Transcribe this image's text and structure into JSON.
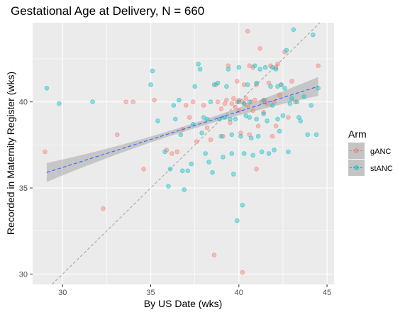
{
  "chart_data": {
    "type": "scatter",
    "title": "Gestational Age at Delivery, N = 660",
    "xlabel": "By US Date (wks)",
    "ylabel": "Recorded in Maternity Register (wks)",
    "xlim": [
      28.3,
      45.4
    ],
    "ylim": [
      29.4,
      44.6
    ],
    "xticks": [
      "30",
      "35",
      "40",
      "45"
    ],
    "yticks": [
      "30",
      "35",
      "40"
    ],
    "grid": true,
    "legend": {
      "title": "Arm",
      "placement": "right",
      "entries": [
        "gANC",
        "stANC"
      ]
    },
    "colors": {
      "gANC": "#F8766D",
      "stANC": "#00BFC4",
      "fit": "#3366FF",
      "identity": "#A0A0A0",
      "panel": "#EBEBEB"
    },
    "fit_line": {
      "style": "dashed",
      "x": [
        29.1,
        44.5
      ],
      "y": [
        35.9,
        40.9
      ],
      "ci_halfwidth_ends": 0.55,
      "ci_halfwidth_mid": 0.15
    },
    "identity_line": {
      "style": "dashed",
      "slope": 1,
      "intercept": 0
    },
    "series": [
      {
        "name": "gANC",
        "points": [
          [
            29.0,
            37.1
          ],
          [
            32.3,
            33.8
          ],
          [
            33.6,
            40.0
          ],
          [
            34.0,
            40.0
          ],
          [
            34.6,
            36.1
          ],
          [
            35.2,
            40.1
          ],
          [
            33.1,
            38.1
          ],
          [
            35.9,
            37.2
          ],
          [
            36.2,
            37.0
          ],
          [
            36.5,
            37.1
          ],
          [
            36.8,
            38.4
          ],
          [
            37.0,
            39.8
          ],
          [
            37.4,
            40.0
          ],
          [
            37.6,
            37.7
          ],
          [
            38.0,
            39.8
          ],
          [
            38.2,
            38.5
          ],
          [
            38.4,
            37.8
          ],
          [
            38.6,
            31.1
          ],
          [
            38.8,
            40.0
          ],
          [
            39.0,
            39.6
          ],
          [
            39.2,
            39.9
          ],
          [
            39.3,
            40.1
          ],
          [
            39.5,
            38.8
          ],
          [
            39.6,
            39.9
          ],
          [
            39.7,
            40.2
          ],
          [
            39.8,
            39.7
          ],
          [
            39.9,
            40.0
          ],
          [
            40.0,
            40.1
          ],
          [
            40.0,
            39.5
          ],
          [
            40.1,
            38.2
          ],
          [
            40.2,
            40.0
          ],
          [
            40.3,
            39.9
          ],
          [
            40.3,
            41.0
          ],
          [
            40.4,
            40.2
          ],
          [
            40.5,
            39.8
          ],
          [
            40.5,
            44.1
          ],
          [
            40.6,
            42.1
          ],
          [
            40.7,
            40.0
          ],
          [
            40.8,
            39.5
          ],
          [
            40.9,
            40.1
          ],
          [
            41.0,
            41.0
          ],
          [
            41.0,
            36.1
          ],
          [
            41.1,
            38.6
          ],
          [
            41.2,
            43.1
          ],
          [
            41.3,
            40.0
          ],
          [
            41.5,
            40.1
          ],
          [
            41.6,
            39.9
          ],
          [
            41.7,
            41.1
          ],
          [
            41.8,
            42.1
          ],
          [
            41.9,
            38.0
          ],
          [
            42.0,
            40.0
          ],
          [
            42.1,
            42.0
          ],
          [
            42.2,
            42.2
          ],
          [
            42.3,
            40.4
          ],
          [
            42.4,
            41.0
          ],
          [
            42.6,
            42.9
          ],
          [
            42.8,
            39.1
          ],
          [
            43.0,
            41.2
          ],
          [
            43.2,
            40.0
          ],
          [
            40.2,
            30.1
          ],
          [
            39.4,
            42.1
          ],
          [
            38.7,
            41.0
          ],
          [
            39.1,
            38.0
          ],
          [
            41.4,
            39.4
          ],
          [
            40.6,
            38.1
          ],
          [
            37.2,
            39.1
          ],
          [
            44.5,
            42.1
          ],
          [
            42.1,
            38.6
          ],
          [
            39.9,
            41.2
          ],
          [
            40.8,
            42.0
          ]
        ]
      },
      {
        "name": "stANC",
        "points": [
          [
            29.1,
            40.8
          ],
          [
            29.8,
            39.9
          ],
          [
            31.7,
            40.0
          ],
          [
            35.0,
            41.0
          ],
          [
            35.1,
            41.8
          ],
          [
            35.4,
            38.9
          ],
          [
            35.8,
            37.1
          ],
          [
            36.0,
            35.1
          ],
          [
            36.1,
            36.1
          ],
          [
            36.3,
            39.8
          ],
          [
            36.6,
            40.1
          ],
          [
            36.7,
            38.1
          ],
          [
            36.8,
            36.0
          ],
          [
            36.9,
            34.9
          ],
          [
            37.1,
            36.0
          ],
          [
            37.3,
            36.4
          ],
          [
            37.4,
            38.7
          ],
          [
            37.5,
            40.9
          ],
          [
            37.7,
            42.2
          ],
          [
            37.8,
            41.9
          ],
          [
            38.0,
            39.1
          ],
          [
            38.1,
            37.0
          ],
          [
            38.3,
            36.5
          ],
          [
            38.5,
            35.9
          ],
          [
            38.6,
            41.0
          ],
          [
            38.8,
            41.1
          ],
          [
            38.9,
            39.0
          ],
          [
            39.0,
            38.0
          ],
          [
            39.1,
            36.8
          ],
          [
            39.2,
            39.1
          ],
          [
            39.4,
            41.9
          ],
          [
            39.5,
            39.0
          ],
          [
            39.6,
            37.0
          ],
          [
            39.7,
            35.8
          ],
          [
            39.8,
            39.0
          ],
          [
            39.9,
            33.1
          ],
          [
            40.0,
            42.0
          ],
          [
            40.1,
            38.0
          ],
          [
            40.2,
            34.0
          ],
          [
            40.3,
            37.0
          ],
          [
            40.4,
            39.2
          ],
          [
            40.5,
            41.0
          ],
          [
            40.6,
            39.1
          ],
          [
            40.7,
            37.9
          ],
          [
            40.8,
            36.9
          ],
          [
            40.9,
            42.1
          ],
          [
            41.0,
            39.0
          ],
          [
            41.1,
            38.0
          ],
          [
            41.2,
            41.9
          ],
          [
            41.3,
            37.1
          ],
          [
            41.4,
            39.3
          ],
          [
            41.5,
            42.0
          ],
          [
            41.6,
            38.9
          ],
          [
            41.7,
            37.0
          ],
          [
            41.8,
            40.9
          ],
          [
            41.9,
            39.8
          ],
          [
            42.0,
            37.2
          ],
          [
            42.1,
            41.9
          ],
          [
            42.2,
            39.0
          ],
          [
            42.3,
            38.3
          ],
          [
            42.4,
            41.0
          ],
          [
            42.5,
            39.2
          ],
          [
            42.6,
            40.8
          ],
          [
            42.7,
            43.0
          ],
          [
            42.8,
            37.1
          ],
          [
            42.9,
            39.9
          ],
          [
            43.0,
            40.2
          ],
          [
            43.1,
            44.2
          ],
          [
            43.3,
            40.0
          ],
          [
            43.5,
            38.9
          ],
          [
            43.7,
            40.3
          ],
          [
            43.9,
            38.1
          ],
          [
            44.1,
            39.8
          ],
          [
            44.2,
            43.9
          ],
          [
            44.4,
            38.1
          ],
          [
            44.5,
            40.8
          ],
          [
            36.4,
            39.0
          ],
          [
            37.9,
            38.2
          ],
          [
            38.4,
            40.0
          ],
          [
            39.3,
            40.9
          ],
          [
            40.0,
            40.0
          ],
          [
            40.6,
            40.0
          ],
          [
            41.0,
            41.1
          ],
          [
            41.9,
            42.0
          ],
          [
            42.2,
            40.9
          ],
          [
            43.4,
            39.1
          ],
          [
            38.2,
            39.0
          ],
          [
            39.6,
            38.1
          ],
          [
            40.3,
            39.9
          ],
          [
            41.4,
            40.1
          ]
        ]
      }
    ]
  }
}
